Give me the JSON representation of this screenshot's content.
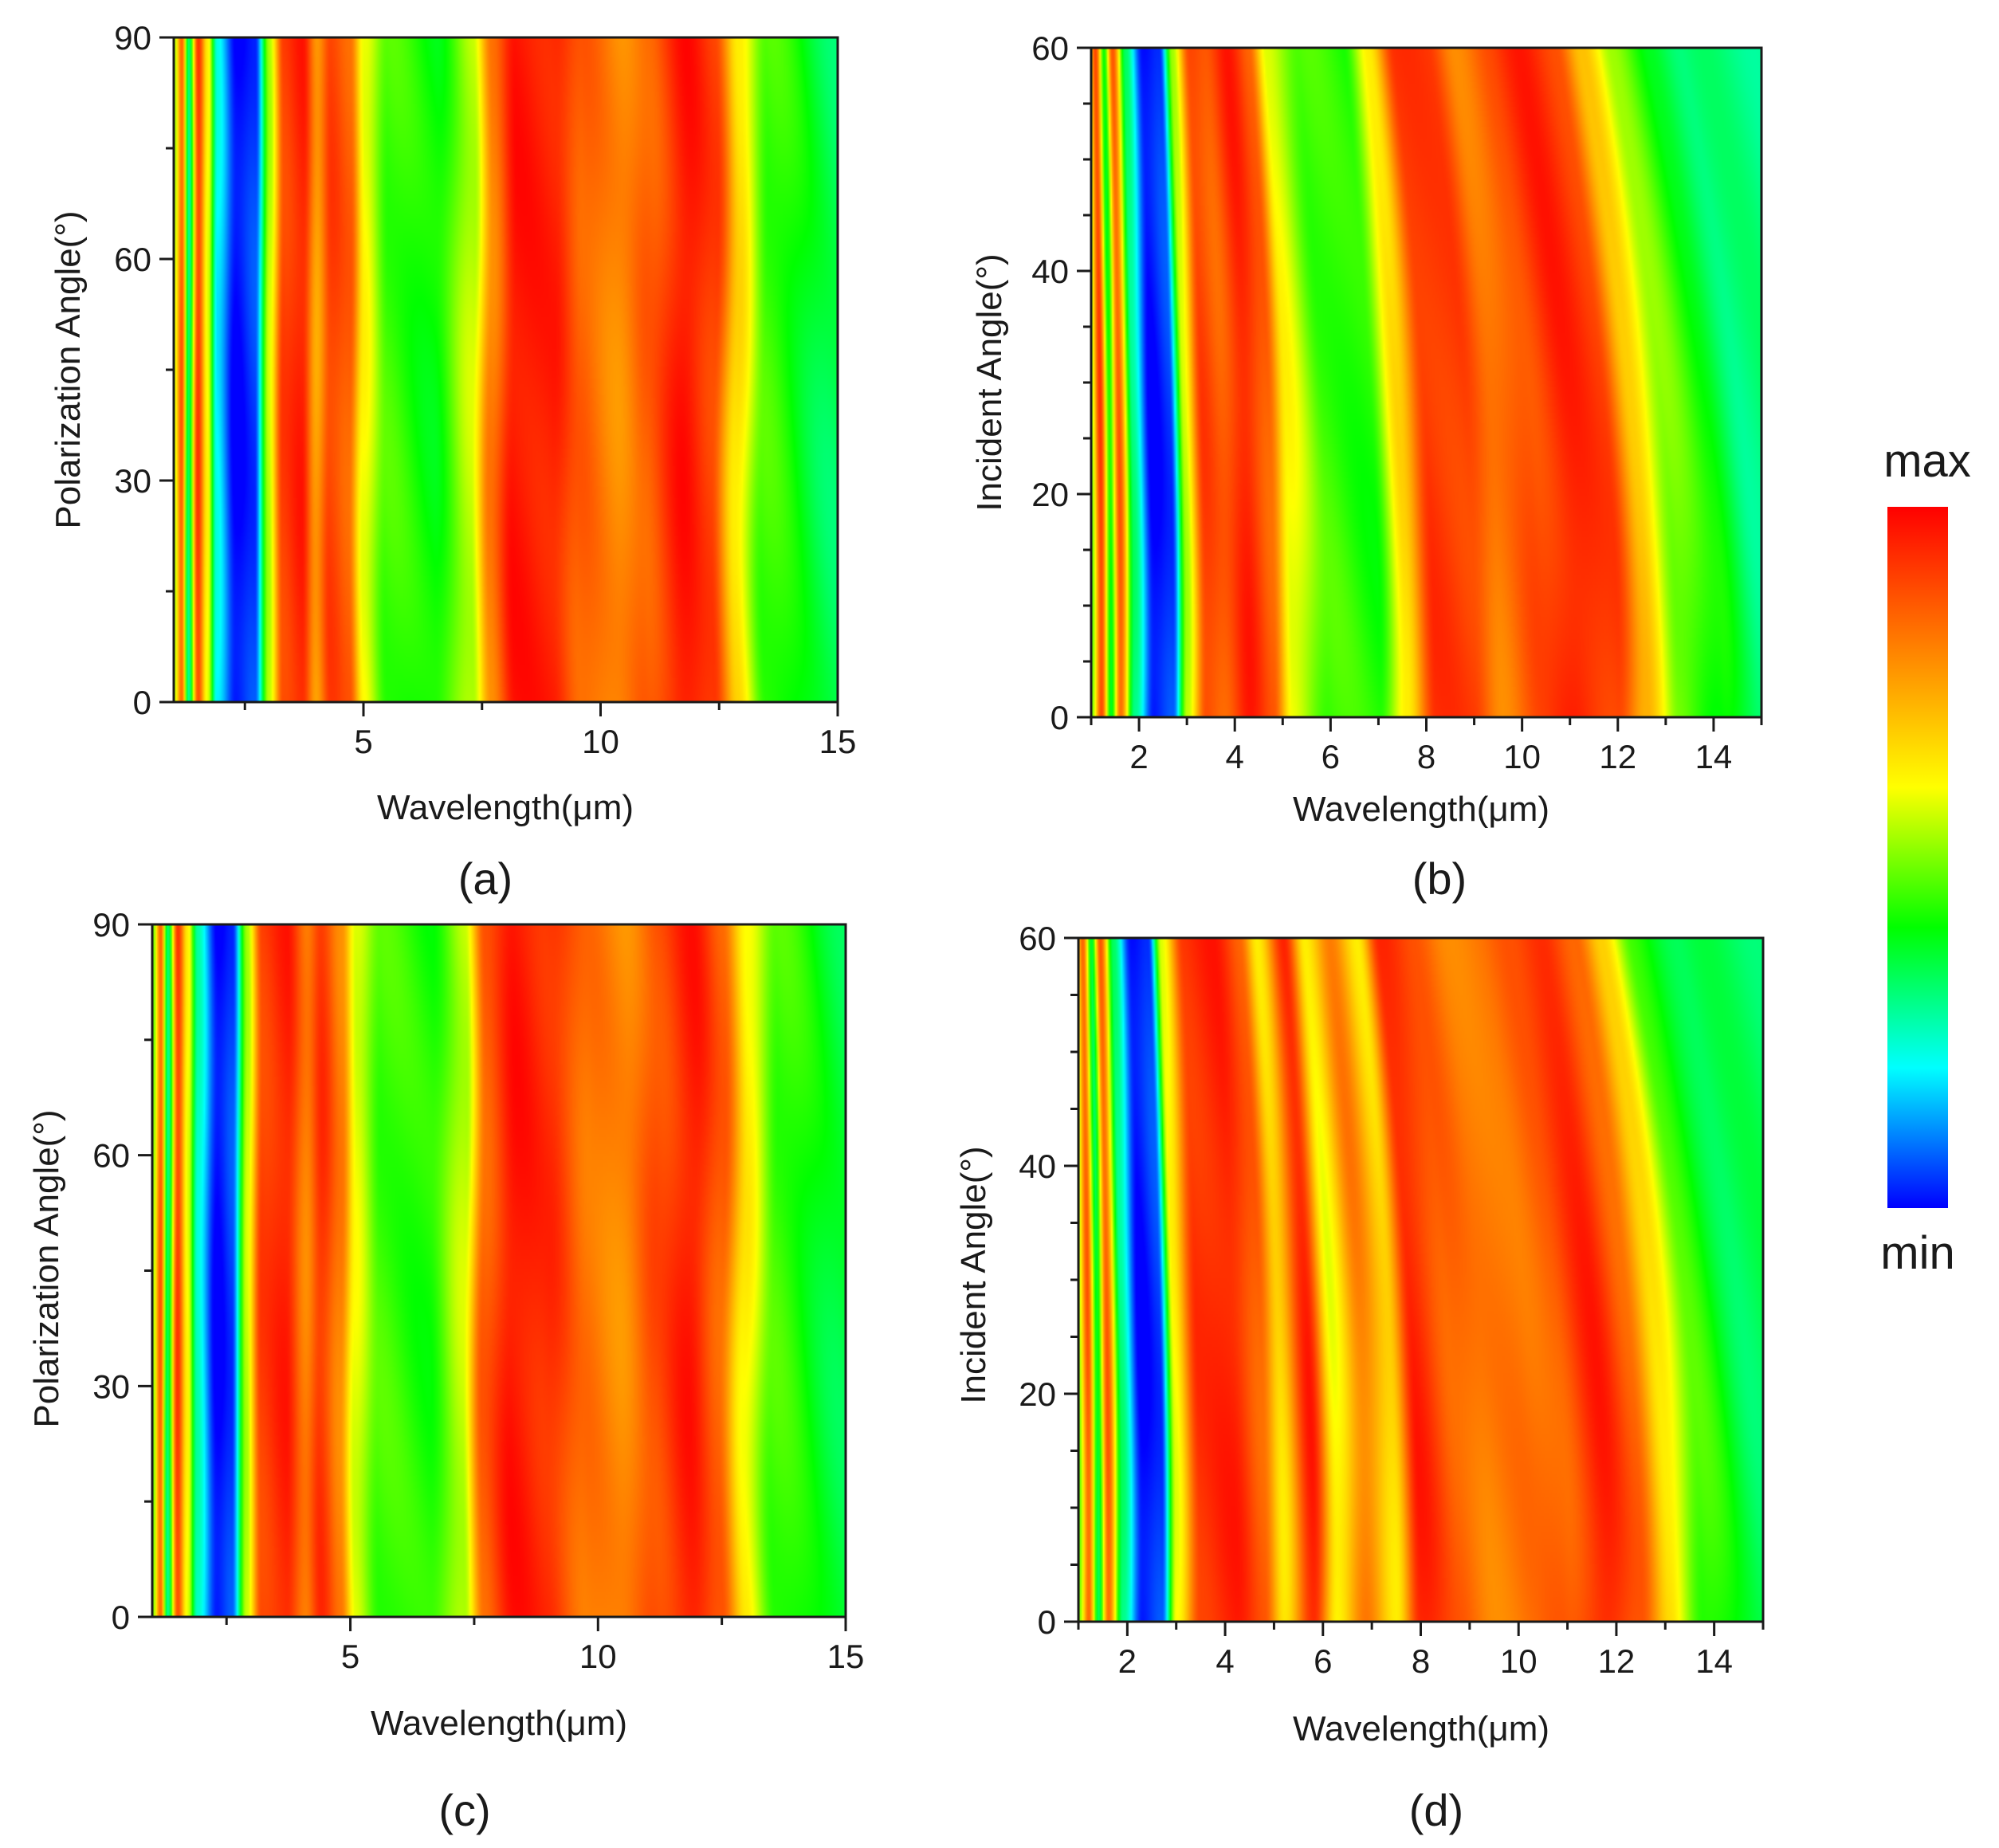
{
  "colormap": {
    "stops": [
      "#0000ff",
      "#00ffff",
      "#00ff00",
      "#ffff00",
      "#ff8000",
      "#ff0000"
    ],
    "max_label": "max",
    "min_label": "min"
  },
  "chart_data": [
    {
      "id": "a",
      "type": "heatmap",
      "panel_label": "(a)",
      "xlabel": "Wavelength(μm)",
      "ylabel": "Polarization Angle(°)",
      "xlim": [
        1,
        15
      ],
      "ylim": [
        0,
        90
      ],
      "xticks": [
        5,
        10,
        15
      ],
      "xminor": [
        2.5,
        7.5,
        12.5
      ],
      "yticks": [
        0,
        30,
        60,
        90
      ],
      "yminor": [
        15,
        45,
        75
      ],
      "profile": [
        [
          1.0,
          0.55
        ],
        [
          1.15,
          0.85
        ],
        [
          1.3,
          0.3
        ],
        [
          1.5,
          0.9
        ],
        [
          1.7,
          0.6
        ],
        [
          1.9,
          0.2
        ],
        [
          2.3,
          0.0
        ],
        [
          2.7,
          0.05
        ],
        [
          3.0,
          0.55
        ],
        [
          3.3,
          0.9
        ],
        [
          3.7,
          0.95
        ],
        [
          4.0,
          0.75
        ],
        [
          4.3,
          0.9
        ],
        [
          4.7,
          0.85
        ],
        [
          5.0,
          0.6
        ],
        [
          5.5,
          0.45
        ],
        [
          6.5,
          0.4
        ],
        [
          7.3,
          0.55
        ],
        [
          7.7,
          0.8
        ],
        [
          8.2,
          0.97
        ],
        [
          9.0,
          0.95
        ],
        [
          9.6,
          0.85
        ],
        [
          10.4,
          0.78
        ],
        [
          11.0,
          0.85
        ],
        [
          11.8,
          0.97
        ],
        [
          12.4,
          0.9
        ],
        [
          12.9,
          0.65
        ],
        [
          13.5,
          0.45
        ],
        [
          15.0,
          0.33
        ]
      ],
      "color_scale": "relative (min to max)"
    },
    {
      "id": "b",
      "type": "heatmap",
      "panel_label": "(b)",
      "xlabel": "Wavelength(μm)",
      "ylabel": "Incident Angle(°)",
      "xlim": [
        1,
        15
      ],
      "ylim": [
        0,
        60
      ],
      "xticks": [
        2,
        4,
        6,
        8,
        10,
        12,
        14
      ],
      "xminor": [
        1,
        3,
        5,
        7,
        9,
        11,
        13,
        15
      ],
      "yticks": [
        0,
        20,
        40,
        60
      ],
      "yminor": [
        5,
        10,
        15,
        25,
        30,
        35,
        45,
        50,
        55
      ],
      "profile": [
        [
          1.0,
          0.5
        ],
        [
          1.2,
          0.9
        ],
        [
          1.4,
          0.4
        ],
        [
          1.6,
          0.85
        ],
        [
          1.9,
          0.3
        ],
        [
          2.3,
          0.0
        ],
        [
          2.7,
          0.05
        ],
        [
          3.0,
          0.55
        ],
        [
          3.4,
          0.9
        ],
        [
          3.8,
          0.85
        ],
        [
          4.3,
          0.95
        ],
        [
          4.8,
          0.85
        ],
        [
          5.2,
          0.6
        ],
        [
          6.0,
          0.45
        ],
        [
          7.0,
          0.42
        ],
        [
          7.6,
          0.65
        ],
        [
          8.2,
          0.92
        ],
        [
          9.0,
          0.9
        ],
        [
          9.6,
          0.8
        ],
        [
          10.4,
          0.88
        ],
        [
          11.2,
          0.95
        ],
        [
          12.0,
          0.9
        ],
        [
          12.6,
          0.7
        ],
        [
          13.3,
          0.5
        ],
        [
          14.2,
          0.4
        ],
        [
          15.0,
          0.3
        ]
      ],
      "shift_with_angle": "resonances shift to shorter wavelength as angle increases",
      "color_scale": "relative (min to max)"
    },
    {
      "id": "c",
      "type": "heatmap",
      "panel_label": "(c)",
      "xlabel": "Wavelength(μm)",
      "ylabel": "Polarization Angle(°)",
      "xlim": [
        1,
        15
      ],
      "ylim": [
        0,
        90
      ],
      "xticks": [
        5,
        10,
        15
      ],
      "xminor": [
        2.5,
        7.5,
        12.5
      ],
      "yticks": [
        0,
        30,
        60,
        90
      ],
      "yminor": [
        15,
        45,
        75
      ],
      "profile": [
        [
          1.0,
          0.5
        ],
        [
          1.15,
          0.85
        ],
        [
          1.3,
          0.3
        ],
        [
          1.5,
          0.9
        ],
        [
          1.7,
          0.6
        ],
        [
          1.9,
          0.25
        ],
        [
          2.3,
          0.0
        ],
        [
          2.6,
          0.05
        ],
        [
          2.9,
          0.55
        ],
        [
          3.2,
          0.9
        ],
        [
          3.7,
          0.95
        ],
        [
          4.1,
          0.8
        ],
        [
          4.4,
          0.92
        ],
        [
          4.8,
          0.8
        ],
        [
          5.1,
          0.58
        ],
        [
          5.6,
          0.45
        ],
        [
          6.6,
          0.42
        ],
        [
          7.3,
          0.55
        ],
        [
          7.7,
          0.85
        ],
        [
          8.3,
          0.97
        ],
        [
          9.0,
          0.93
        ],
        [
          9.8,
          0.82
        ],
        [
          10.5,
          0.78
        ],
        [
          11.2,
          0.88
        ],
        [
          11.9,
          0.96
        ],
        [
          12.5,
          0.85
        ],
        [
          13.0,
          0.62
        ],
        [
          13.6,
          0.45
        ],
        [
          15.0,
          0.35
        ]
      ],
      "color_scale": "relative (min to max)"
    },
    {
      "id": "d",
      "type": "heatmap",
      "panel_label": "(d)",
      "xlabel": "Wavelength(μm)",
      "ylabel": "Incident Angle(°)",
      "xlim": [
        1,
        15
      ],
      "ylim": [
        0,
        60
      ],
      "xticks": [
        2,
        4,
        6,
        8,
        10,
        12,
        14
      ],
      "xminor": [
        1,
        3,
        5,
        7,
        9,
        11,
        13,
        15
      ],
      "yticks": [
        0,
        20,
        40,
        60
      ],
      "yminor": [
        5,
        10,
        15,
        25,
        30,
        35,
        45,
        50,
        55
      ],
      "profile": [
        [
          1.0,
          0.5
        ],
        [
          1.2,
          0.85
        ],
        [
          1.4,
          0.35
        ],
        [
          1.6,
          0.85
        ],
        [
          1.9,
          0.3
        ],
        [
          2.3,
          0.0
        ],
        [
          2.7,
          0.05
        ],
        [
          3.0,
          0.6
        ],
        [
          3.5,
          0.92
        ],
        [
          4.2,
          0.95
        ],
        [
          4.8,
          0.85
        ],
        [
          5.2,
          0.65
        ],
        [
          5.8,
          0.95
        ],
        [
          6.3,
          0.6
        ],
        [
          6.9,
          0.8
        ],
        [
          7.5,
          0.65
        ],
        [
          8.0,
          0.95
        ],
        [
          8.8,
          0.85
        ],
        [
          9.5,
          0.8
        ],
        [
          10.3,
          0.82
        ],
        [
          11.0,
          0.85
        ],
        [
          11.8,
          0.95
        ],
        [
          12.5,
          0.85
        ],
        [
          13.1,
          0.65
        ],
        [
          13.8,
          0.45
        ],
        [
          15.0,
          0.33
        ]
      ],
      "shift_with_angle": "resonances shift to shorter wavelength as angle increases",
      "color_scale": "relative (min to max)"
    }
  ]
}
